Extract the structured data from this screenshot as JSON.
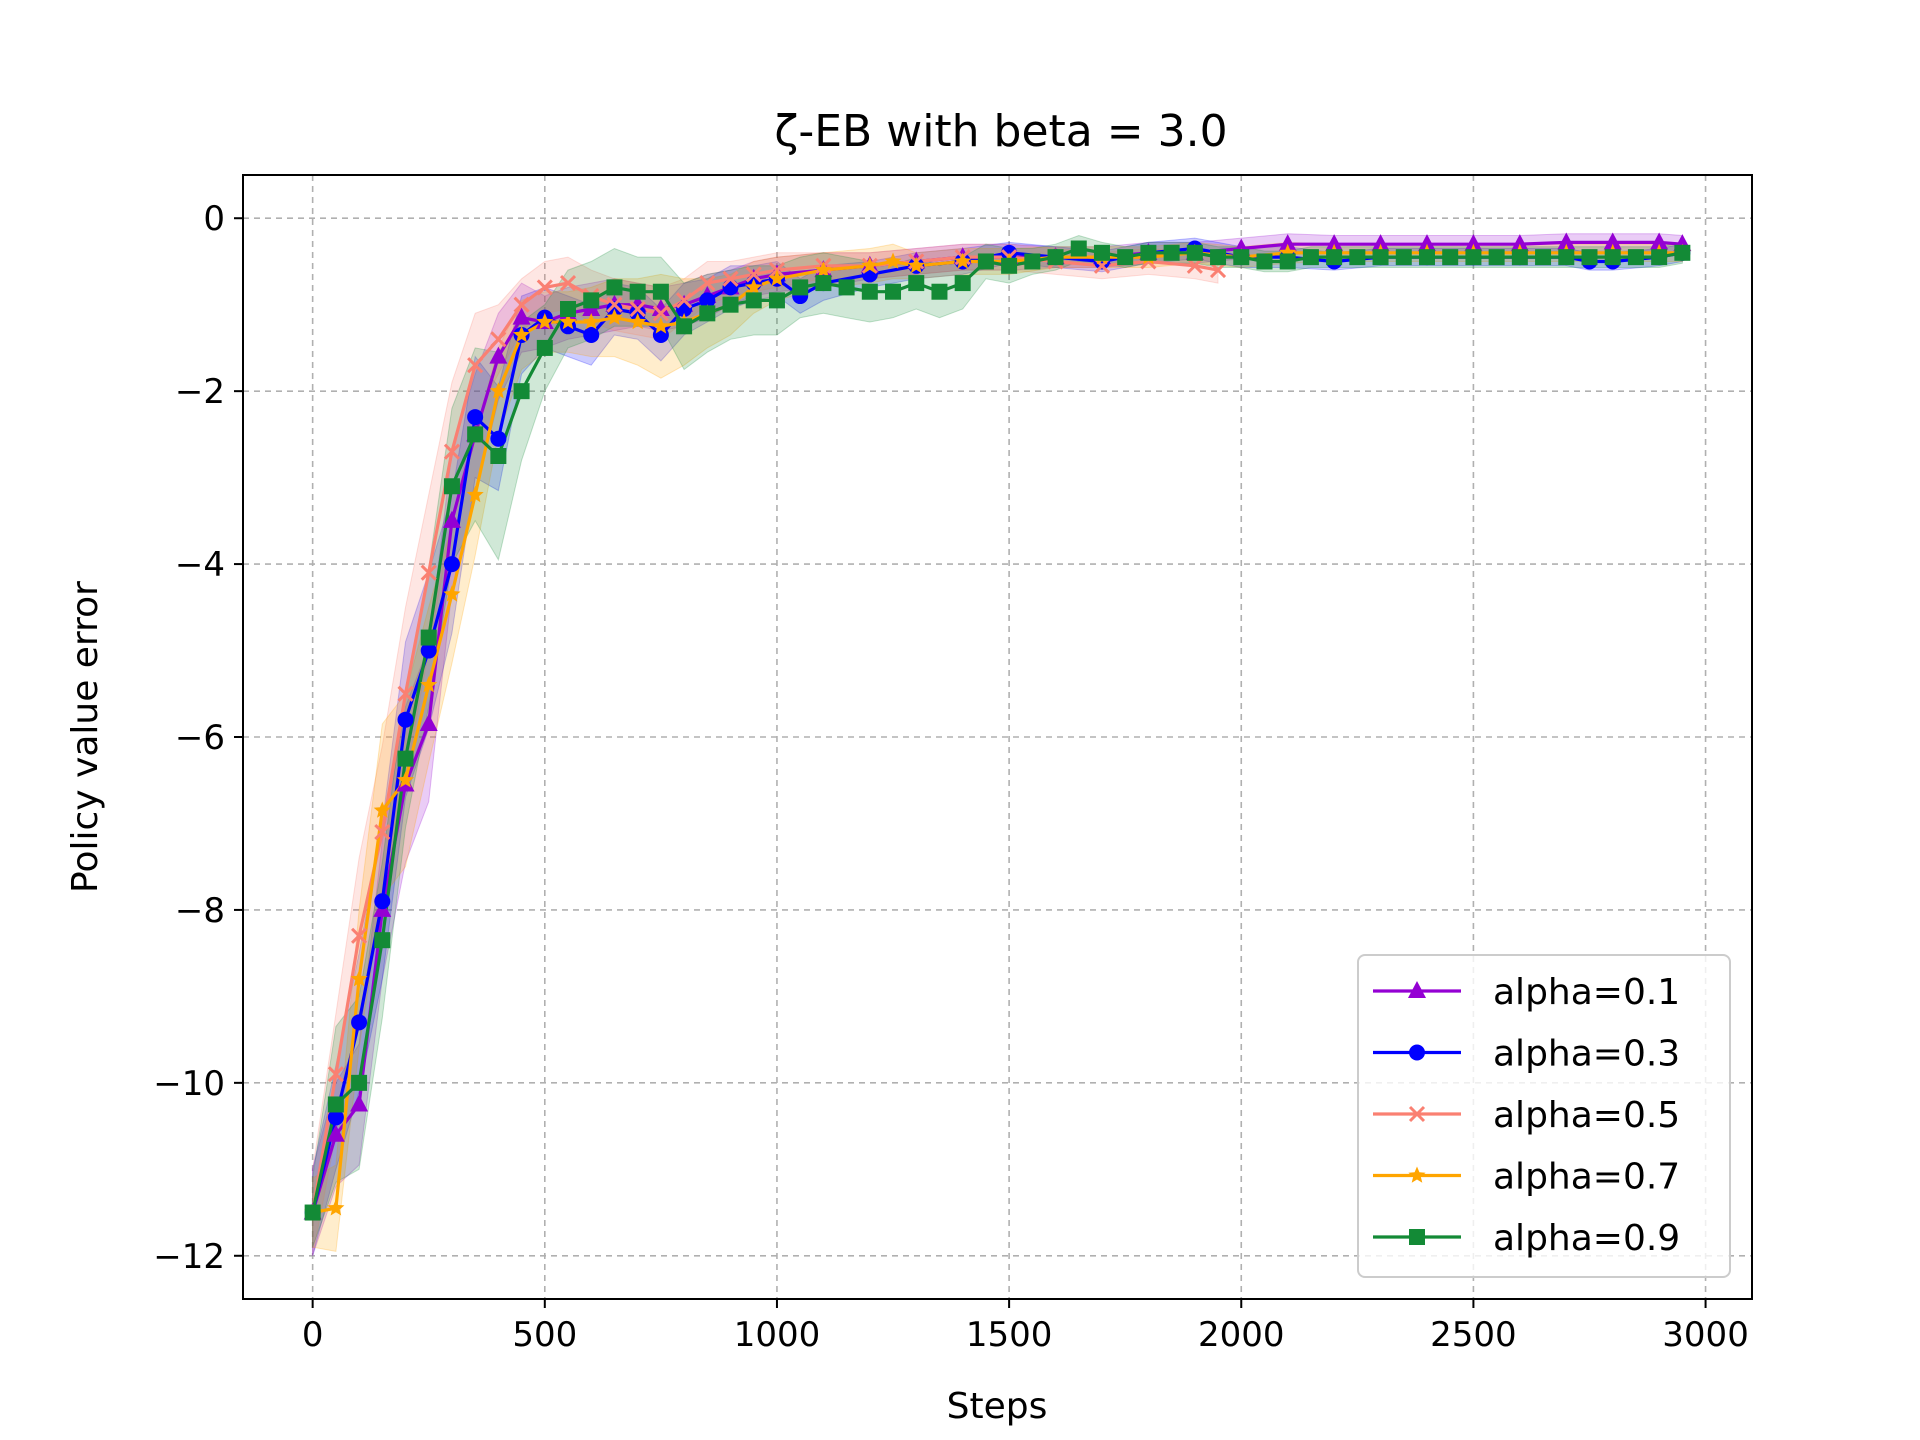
{
  "chart_data": {
    "type": "line",
    "title": "ζ-EB with beta = 3.0",
    "xlabel": "Steps",
    "ylabel": "Policy value error",
    "xlim": [
      -150,
      3100
    ],
    "ylim": [
      -12.5,
      0.5
    ],
    "xticks": [
      0,
      500,
      1000,
      1500,
      2000,
      2500,
      3000
    ],
    "yticks": [
      0,
      -2,
      -4,
      -6,
      -8,
      -10,
      -12
    ],
    "xtick_labels": [
      "0",
      "500",
      "1000",
      "1500",
      "2000",
      "2500",
      "3000"
    ],
    "ytick_labels": [
      "0",
      "−2",
      "−4",
      "−6",
      "−8",
      "−10",
      "−12"
    ],
    "grid": true,
    "legend_position": "lower-right",
    "shaded_band": "variability band around each series",
    "series": [
      {
        "name": "alpha=0.1",
        "color": "#9400D3",
        "marker": "triangle",
        "x": [
          0,
          50,
          100,
          150,
          200,
          250,
          300,
          350,
          400,
          450,
          500,
          550,
          600,
          650,
          700,
          750,
          800,
          850,
          900,
          950,
          1000,
          1100,
          1200,
          1300,
          1400,
          1500,
          1600,
          1700,
          1800,
          1900,
          2000,
          2100,
          2200,
          2300,
          2400,
          2500,
          2600,
          2700,
          2800,
          2900,
          2950
        ],
        "y": [
          -11.5,
          -10.6,
          -10.25,
          -8.0,
          -6.55,
          -5.85,
          -3.5,
          -2.5,
          -1.6,
          -1.15,
          -1.2,
          -1.1,
          -1.05,
          -1.0,
          -1.0,
          -1.05,
          -1.0,
          -0.9,
          -0.8,
          -0.7,
          -0.65,
          -0.6,
          -0.55,
          -0.5,
          -0.45,
          -0.45,
          -0.45,
          -0.45,
          -0.4,
          -0.4,
          -0.35,
          -0.3,
          -0.3,
          -0.3,
          -0.3,
          -0.3,
          -0.3,
          -0.28,
          -0.28,
          -0.28,
          -0.3
        ],
        "band": [
          0.5,
          0.6,
          0.7,
          0.8,
          0.9,
          0.9,
          0.8,
          0.7,
          0.5,
          0.4,
          0.3,
          0.3,
          0.3,
          0.3,
          0.25,
          0.25,
          0.25,
          0.25,
          0.2,
          0.2,
          0.2,
          0.2,
          0.15,
          0.15,
          0.15,
          0.15,
          0.12,
          0.12,
          0.12,
          0.12,
          0.12,
          0.12,
          0.1,
          0.1,
          0.1,
          0.1,
          0.1,
          0.1,
          0.1,
          0.1,
          0.1
        ]
      },
      {
        "name": "alpha=0.3",
        "color": "#0000FF",
        "marker": "circle",
        "x": [
          0,
          50,
          100,
          150,
          200,
          250,
          300,
          350,
          400,
          450,
          500,
          550,
          600,
          650,
          700,
          750,
          800,
          850,
          900,
          950,
          1000,
          1050,
          1100,
          1200,
          1300,
          1400,
          1500,
          1600,
          1700,
          1800,
          1900,
          2000,
          2100,
          2200,
          2300,
          2400,
          2500,
          2600,
          2700,
          2750,
          2800,
          2900,
          2950
        ],
        "y": [
          -11.5,
          -10.4,
          -9.3,
          -7.9,
          -5.8,
          -5.0,
          -4.0,
          -2.3,
          -2.55,
          -1.35,
          -1.15,
          -1.25,
          -1.35,
          -1.05,
          -1.1,
          -1.35,
          -1.05,
          -0.95,
          -0.8,
          -0.75,
          -0.7,
          -0.9,
          -0.75,
          -0.65,
          -0.55,
          -0.5,
          -0.4,
          -0.45,
          -0.5,
          -0.4,
          -0.35,
          -0.45,
          -0.45,
          -0.5,
          -0.45,
          -0.45,
          -0.45,
          -0.45,
          -0.45,
          -0.5,
          -0.5,
          -0.45,
          -0.4
        ],
        "band": [
          0.5,
          0.6,
          0.8,
          0.9,
          0.9,
          0.9,
          0.8,
          0.7,
          0.6,
          0.45,
          0.35,
          0.35,
          0.35,
          0.3,
          0.3,
          0.3,
          0.3,
          0.25,
          0.25,
          0.2,
          0.2,
          0.2,
          0.2,
          0.15,
          0.15,
          0.15,
          0.12,
          0.12,
          0.12,
          0.12,
          0.12,
          0.12,
          0.12,
          0.1,
          0.1,
          0.1,
          0.1,
          0.1,
          0.1,
          0.1,
          0.1,
          0.1,
          0.1
        ]
      },
      {
        "name": "alpha=0.5",
        "color": "#FA8072",
        "marker": "x",
        "x": [
          0,
          50,
          100,
          150,
          200,
          250,
          300,
          350,
          400,
          450,
          500,
          550,
          600,
          650,
          700,
          750,
          800,
          850,
          900,
          950,
          1000,
          1100,
          1200,
          1300,
          1400,
          1500,
          1600,
          1700,
          1800,
          1900,
          1950
        ],
        "y": [
          -11.5,
          -9.9,
          -8.3,
          -7.1,
          -5.5,
          -4.1,
          -2.7,
          -1.7,
          -1.4,
          -1.0,
          -0.8,
          -0.75,
          -0.9,
          -1.0,
          -1.05,
          -1.1,
          -0.95,
          -0.75,
          -0.7,
          -0.65,
          -0.6,
          -0.55,
          -0.55,
          -0.5,
          -0.45,
          -0.45,
          -0.5,
          -0.55,
          -0.5,
          -0.55,
          -0.6
        ],
        "band": [
          0.5,
          0.7,
          0.9,
          1.0,
          1.0,
          0.9,
          0.8,
          0.6,
          0.4,
          0.3,
          0.3,
          0.3,
          0.3,
          0.3,
          0.3,
          0.3,
          0.25,
          0.25,
          0.2,
          0.2,
          0.2,
          0.15,
          0.15,
          0.15,
          0.15,
          0.15,
          0.15,
          0.15,
          0.15,
          0.15,
          0.15
        ]
      },
      {
        "name": "alpha=0.7",
        "color": "#FFA500",
        "marker": "star",
        "x": [
          0,
          50,
          100,
          150,
          200,
          250,
          300,
          350,
          400,
          450,
          500,
          550,
          600,
          650,
          700,
          750,
          800,
          850,
          900,
          950,
          1000,
          1100,
          1200,
          1250,
          1300,
          1400,
          1500,
          1600,
          1700,
          1800,
          1900,
          2000,
          2100,
          2200,
          2300,
          2400,
          2500,
          2600,
          2700,
          2800,
          2900,
          2950
        ],
        "y": [
          -11.5,
          -11.45,
          -8.8,
          -6.85,
          -6.5,
          -5.4,
          -4.35,
          -3.2,
          -2.0,
          -1.35,
          -1.2,
          -1.2,
          -1.2,
          -1.15,
          -1.2,
          -1.25,
          -1.2,
          -1.1,
          -1.0,
          -0.8,
          -0.7,
          -0.6,
          -0.55,
          -0.5,
          -0.55,
          -0.5,
          -0.5,
          -0.45,
          -0.45,
          -0.45,
          -0.4,
          -0.45,
          -0.4,
          -0.4,
          -0.4,
          -0.4,
          -0.4,
          -0.4,
          -0.4,
          -0.4,
          -0.4,
          -0.4
        ],
        "band": [
          0.4,
          0.5,
          0.8,
          1.0,
          1.0,
          0.9,
          0.8,
          0.7,
          0.5,
          0.4,
          0.35,
          0.35,
          0.4,
          0.45,
          0.5,
          0.6,
          0.5,
          0.4,
          0.35,
          0.3,
          0.25,
          0.2,
          0.2,
          0.2,
          0.15,
          0.15,
          0.15,
          0.12,
          0.12,
          0.12,
          0.12,
          0.12,
          0.12,
          0.1,
          0.1,
          0.1,
          0.1,
          0.1,
          0.1,
          0.1,
          0.1,
          0.1
        ]
      },
      {
        "name": "alpha=0.9",
        "color": "#138A36",
        "marker": "square",
        "x": [
          0,
          50,
          100,
          150,
          200,
          250,
          300,
          350,
          400,
          450,
          500,
          550,
          600,
          650,
          700,
          750,
          800,
          850,
          900,
          950,
          1000,
          1050,
          1100,
          1150,
          1200,
          1250,
          1300,
          1350,
          1400,
          1450,
          1500,
          1550,
          1600,
          1650,
          1700,
          1750,
          1800,
          1850,
          1900,
          1950,
          2000,
          2050,
          2100,
          2150,
          2200,
          2250,
          2300,
          2350,
          2400,
          2450,
          2500,
          2550,
          2600,
          2650,
          2700,
          2750,
          2800,
          2850,
          2900,
          2950
        ],
        "y": [
          -11.5,
          -10.25,
          -10.0,
          -8.35,
          -6.25,
          -4.85,
          -3.1,
          -2.5,
          -2.75,
          -2.0,
          -1.5,
          -1.05,
          -0.95,
          -0.8,
          -0.85,
          -0.85,
          -1.25,
          -1.1,
          -1.0,
          -0.95,
          -0.95,
          -0.8,
          -0.75,
          -0.8,
          -0.85,
          -0.85,
          -0.75,
          -0.85,
          -0.75,
          -0.5,
          -0.55,
          -0.5,
          -0.45,
          -0.35,
          -0.4,
          -0.45,
          -0.4,
          -0.4,
          -0.4,
          -0.45,
          -0.45,
          -0.5,
          -0.5,
          -0.45,
          -0.45,
          -0.45,
          -0.45,
          -0.45,
          -0.45,
          -0.45,
          -0.45,
          -0.45,
          -0.45,
          -0.45,
          -0.45,
          -0.45,
          -0.45,
          -0.45,
          -0.45,
          -0.4
        ],
        "band": [
          0.4,
          0.9,
          1.0,
          0.9,
          0.8,
          0.8,
          0.9,
          1.0,
          1.2,
          0.8,
          0.5,
          0.45,
          0.45,
          0.45,
          0.4,
          0.4,
          0.5,
          0.45,
          0.4,
          0.4,
          0.4,
          0.35,
          0.35,
          0.35,
          0.35,
          0.3,
          0.3,
          0.3,
          0.3,
          0.2,
          0.2,
          0.15,
          0.15,
          0.15,
          0.12,
          0.12,
          0.12,
          0.12,
          0.12,
          0.12,
          0.12,
          0.12,
          0.12,
          0.12,
          0.12,
          0.12,
          0.12,
          0.12,
          0.12,
          0.12,
          0.12,
          0.12,
          0.12,
          0.12,
          0.12,
          0.12,
          0.12,
          0.12,
          0.12,
          0.12
        ]
      }
    ]
  }
}
